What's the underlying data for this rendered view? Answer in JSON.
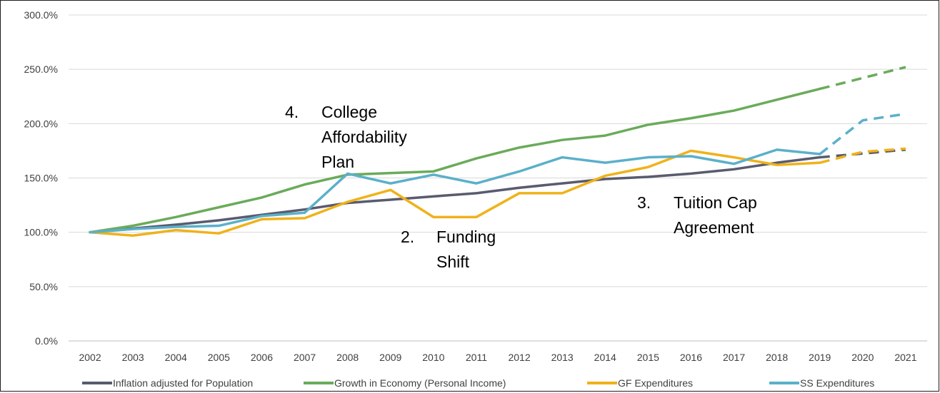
{
  "chart_data": {
    "type": "line",
    "title": "",
    "xlabel": "",
    "ylabel": "",
    "x": [
      "2002",
      "2003",
      "2004",
      "2005",
      "2006",
      "2007",
      "2008",
      "2009",
      "2010",
      "2011",
      "2012",
      "2013",
      "2014",
      "2015",
      "2016",
      "2017",
      "2018",
      "2019",
      "2020",
      "2021"
    ],
    "y_ticks": [
      "0.0%",
      "50.0%",
      "100.0%",
      "150.0%",
      "200.0%",
      "250.0%",
      "300.0%"
    ],
    "ylim": [
      0,
      300
    ],
    "grid": true,
    "legend_position": "bottom",
    "projected_from": "2019",
    "series": [
      {
        "name": "Inflation adjusted for Population",
        "color": "#595b6e",
        "values": [
          100,
          103.5,
          107,
          111,
          116,
          121,
          127,
          130,
          133,
          136,
          141,
          145,
          149,
          151,
          154,
          158,
          164,
          169,
          172.5,
          176
        ]
      },
      {
        "name": "Growth in Economy (Personal Income)",
        "color": "#6aab5a",
        "values": [
          100,
          106,
          114,
          123,
          132,
          144,
          153,
          154.5,
          156,
          168,
          178,
          185,
          189,
          199,
          205,
          212,
          222,
          232,
          242,
          252
        ]
      },
      {
        "name": "GF Expenditures",
        "color": "#f0b21a",
        "values": [
          100,
          97,
          102,
          99,
          112,
          113,
          128,
          139,
          114,
          114,
          136,
          136,
          152,
          160,
          175,
          169,
          162,
          164,
          174,
          177
        ]
      },
      {
        "name": "SS Expenditures",
        "color": "#5bb0c9",
        "values": [
          100,
          103,
          105,
          106,
          115,
          118,
          154,
          145,
          153,
          145,
          156,
          169,
          164,
          169,
          170,
          163,
          176,
          172,
          203,
          209
        ]
      }
    ],
    "annotations": [
      {
        "number": "4.",
        "lines": [
          "College",
          "Affordability",
          "Plan"
        ]
      },
      {
        "number": "2.",
        "lines": [
          "Funding",
          "Shift"
        ]
      },
      {
        "number": "3.",
        "lines": [
          "Tuition Cap",
          "Agreement"
        ]
      }
    ]
  }
}
